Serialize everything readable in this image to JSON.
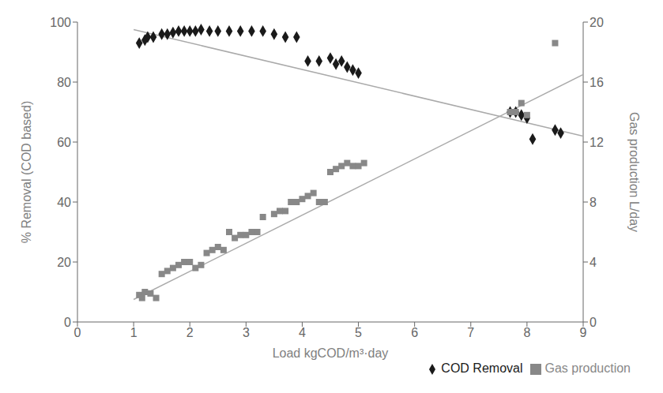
{
  "chart_data": {
    "type": "scatter",
    "xlabel": "Load  kgCOD/m³·day",
    "ylabel": "% Removal (COD based)",
    "y2label": "Gas production L/day",
    "xlim": [
      0,
      9
    ],
    "xticks": [
      0,
      1,
      2,
      3,
      4,
      5,
      6,
      7,
      8,
      9
    ],
    "ylim": [
      0,
      100
    ],
    "yticks": [
      0,
      20,
      40,
      60,
      80,
      100
    ],
    "y2lim": [
      0,
      20
    ],
    "y2ticks": [
      0,
      4,
      8,
      12,
      16,
      20
    ],
    "grid": false,
    "legend": "lower right",
    "series": [
      {
        "type": "line",
        "color": "#aaaaaa",
        "x": [
          1.0,
          9.0
        ],
        "values": [
          97.5,
          62.0
        ]
      },
      {
        "type": "line",
        "color": "#aaaaaa",
        "axis": "y2",
        "x": [
          1.0,
          9.0
        ],
        "values": [
          1.5,
          16.5
        ]
      },
      {
        "name": "COD Removal",
        "type": "scatter",
        "marker": "diamond",
        "color": "#1a1a1a",
        "x": [
          1.1,
          1.2,
          1.25,
          1.35,
          1.5,
          1.6,
          1.7,
          1.8,
          1.9,
          2.0,
          2.1,
          2.2,
          2.35,
          2.5,
          2.7,
          2.9,
          3.1,
          3.3,
          3.5,
          3.7,
          3.9,
          4.1,
          4.3,
          4.5,
          4.6,
          4.7,
          4.8,
          4.9,
          5.0,
          7.7,
          7.8,
          7.9,
          8.0,
          8.1,
          8.5,
          8.6
        ],
        "values": [
          93,
          94,
          95,
          95,
          96,
          96,
          96.5,
          97,
          97,
          97,
          97,
          97.5,
          97,
          97,
          97,
          97,
          97,
          97,
          96,
          95,
          95,
          87,
          87,
          88,
          86,
          87,
          85,
          84,
          83,
          70,
          70,
          69,
          68,
          61,
          64,
          63
        ]
      },
      {
        "name": "Gas production",
        "type": "scatter",
        "marker": "square",
        "color": "#888888",
        "axis": "y2",
        "x": [
          1.1,
          1.15,
          1.2,
          1.3,
          1.4,
          1.5,
          1.6,
          1.7,
          1.8,
          1.9,
          2.0,
          2.1,
          2.2,
          2.3,
          2.4,
          2.5,
          2.6,
          2.7,
          2.8,
          2.9,
          3.0,
          3.1,
          3.2,
          3.3,
          3.5,
          3.6,
          3.7,
          3.8,
          3.9,
          4.0,
          4.1,
          4.2,
          4.3,
          4.4,
          4.5,
          4.6,
          4.7,
          4.8,
          4.9,
          5.0,
          5.1,
          7.7,
          7.8,
          7.9,
          8.0,
          8.5
        ],
        "values": [
          1.8,
          1.6,
          2.0,
          1.9,
          1.6,
          3.2,
          3.4,
          3.6,
          3.8,
          4.0,
          4.0,
          3.6,
          3.8,
          4.6,
          4.8,
          5.0,
          4.8,
          6.0,
          5.6,
          5.8,
          5.8,
          6.0,
          6.0,
          7.0,
          7.2,
          7.4,
          7.4,
          8.0,
          8.0,
          8.2,
          8.4,
          8.6,
          8.0,
          8.0,
          10.0,
          10.2,
          10.4,
          10.6,
          10.4,
          10.4,
          10.6,
          14.0,
          14.0,
          14.6,
          13.8,
          18.6
        ]
      }
    ]
  }
}
